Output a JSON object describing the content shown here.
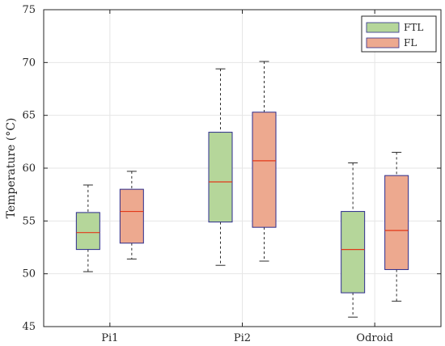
{
  "chart_data": {
    "type": "box",
    "categories": [
      "Pi1",
      "Pi2",
      "Odroid"
    ],
    "ylabel": "Temperature (°C)",
    "xlabel": "",
    "ylim": [
      45,
      75
    ],
    "yticks": [
      45,
      50,
      55,
      60,
      65,
      70,
      75
    ],
    "grid": true,
    "legend_position": "top-right",
    "series": [
      {
        "name": "FTL",
        "color": "#b5d69a",
        "boxes": [
          {
            "category": "Pi1",
            "min": 50.2,
            "q1": 52.3,
            "median": 53.9,
            "q3": 55.8,
            "max": 58.4
          },
          {
            "category": "Pi2",
            "min": 50.8,
            "q1": 54.9,
            "median": 58.7,
            "q3": 63.4,
            "max": 69.4
          },
          {
            "category": "Odroid",
            "min": 45.9,
            "q1": 48.2,
            "median": 52.3,
            "q3": 55.9,
            "max": 60.5
          }
        ]
      },
      {
        "name": "FL",
        "color": "#eda98f",
        "boxes": [
          {
            "category": "Pi1",
            "min": 51.4,
            "q1": 52.9,
            "median": 55.9,
            "q3": 58.0,
            "max": 59.7
          },
          {
            "category": "Pi2",
            "min": 51.2,
            "q1": 54.4,
            "median": 60.7,
            "q3": 65.3,
            "max": 70.1
          },
          {
            "category": "Odroid",
            "min": 47.4,
            "q1": 50.4,
            "median": 54.1,
            "q3": 59.3,
            "max": 61.5
          }
        ]
      }
    ],
    "style": {
      "box_edge_color": "#2b2b8c",
      "median_color": "#e2391a",
      "whisker_color": "#2b2b2b",
      "grid_color": "#e6e6e6",
      "axis_color": "#262626"
    }
  }
}
